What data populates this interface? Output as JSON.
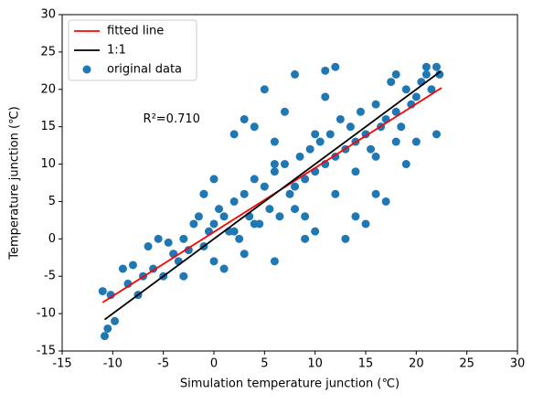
{
  "chart_data": {
    "type": "scatter",
    "xlabel": "Simulation temperature junction (℃)",
    "ylabel": "Temperature junction (℃)",
    "xlim": [
      -15,
      30
    ],
    "ylim": [
      -15,
      30
    ],
    "xticks": [
      -15,
      -10,
      -5,
      0,
      5,
      10,
      15,
      20,
      25,
      30
    ],
    "yticks": [
      -15,
      -10,
      -5,
      0,
      5,
      10,
      15,
      20,
      25,
      30
    ],
    "legend": "upper left",
    "annotation": {
      "text": "R²=0.710",
      "x": -7,
      "y": 16
    },
    "series": [
      {
        "name": "fitted line",
        "type": "line",
        "color": "#ff0000",
        "x": [
          -11,
          22.5
        ],
        "values": [
          -8.5,
          20.2
        ]
      },
      {
        "name": "1:1",
        "type": "line",
        "color": "#000000",
        "x": [
          -10.8,
          22.4
        ],
        "values": [
          -10.8,
          22.4
        ]
      },
      {
        "name": "original data",
        "type": "scatter",
        "color": "#1f77b4",
        "x": [
          -11,
          -10.8,
          -10.5,
          -10.2,
          -9.8,
          -9,
          -8.5,
          -8,
          -7.5,
          -7,
          -6.5,
          -6,
          -5.5,
          -5,
          -4.5,
          -4,
          -3.5,
          -3,
          -2.5,
          -2,
          -1.5,
          -1,
          -0.5,
          0,
          0.5,
          1,
          1.5,
          2,
          2.5,
          3,
          3.5,
          4,
          4.5,
          5,
          5.5,
          6,
          6.5,
          7,
          7.5,
          8,
          8.5,
          9,
          9.5,
          10,
          10.5,
          11,
          11.5,
          12,
          12.5,
          13,
          13.5,
          14,
          14.5,
          15,
          15.5,
          16,
          16.5,
          17,
          17.5,
          18,
          18.5,
          19,
          19.5,
          20,
          20.5,
          21,
          21.5,
          22,
          22.3,
          5,
          8,
          11,
          10,
          -1,
          15,
          13,
          6,
          2,
          3,
          4,
          7,
          12,
          18,
          21,
          0,
          -1,
          14,
          16,
          17,
          9,
          3,
          1,
          -3,
          -4,
          6,
          10,
          20,
          22,
          19,
          0,
          8,
          12,
          4,
          14,
          18,
          6,
          2,
          9,
          16,
          11
        ],
        "values": [
          -7,
          -13,
          -12,
          -7.5,
          -11,
          -4,
          -6,
          -3.5,
          -7.5,
          -5,
          -1,
          -4,
          0,
          -5,
          -0.5,
          -2,
          -3,
          0,
          -1.5,
          2,
          3,
          -1,
          1,
          2,
          4,
          3,
          1,
          5,
          0,
          6,
          3,
          8,
          2,
          7,
          4,
          9,
          3,
          10,
          6,
          7,
          11,
          8,
          12,
          9,
          13,
          10,
          14,
          11,
          16,
          12,
          15,
          13,
          17,
          14,
          12,
          18,
          15,
          16,
          21,
          17,
          15,
          20,
          18,
          19,
          21,
          22,
          20,
          23,
          22,
          20,
          22,
          22.5,
          1,
          6,
          2,
          0,
          -3,
          14,
          16,
          15,
          17,
          23,
          22,
          23,
          8,
          6,
          3,
          6,
          5,
          0,
          -2,
          -4,
          -5,
          -2,
          13,
          14,
          13,
          14,
          10,
          -3,
          4,
          6,
          2,
          9,
          13,
          10,
          1,
          3,
          11,
          19
        ]
      }
    ]
  }
}
